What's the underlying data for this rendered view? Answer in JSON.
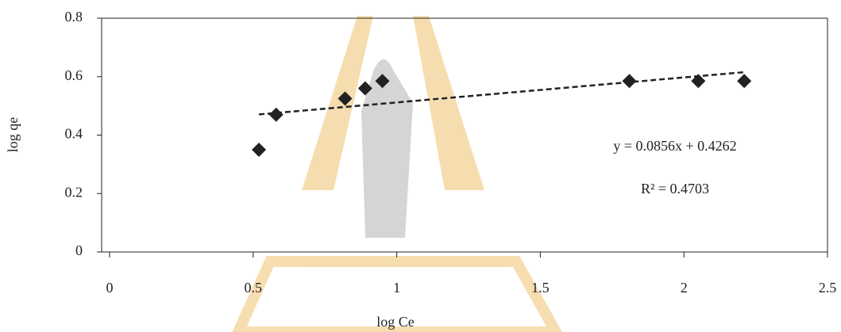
{
  "chart_data": {
    "type": "scatter",
    "x_label": "log Ce",
    "y_label": "log qe",
    "x": [
      0.52,
      0.58,
      0.82,
      0.89,
      0.95,
      1.81,
      2.05,
      2.21
    ],
    "series": [
      {
        "name": "log qe",
        "color": "#222222",
        "values": [
          0.35,
          0.47,
          0.525,
          0.56,
          0.585,
          0.585,
          0.585,
          0.585
        ]
      }
    ],
    "xlim": [
      0,
      2.5
    ],
    "xticks": [
      0,
      0.5,
      1,
      1.5,
      2,
      2.5
    ],
    "ylim": [
      0,
      0.8
    ],
    "yticks": [
      0,
      0.2,
      0.4,
      0.6,
      0.8
    ],
    "trendline": {
      "slope": 0.0856,
      "intercept": 0.4262,
      "label": "y = 0.0856x + 0.4262",
      "r2_label": "R² = 0.4703"
    }
  }
}
